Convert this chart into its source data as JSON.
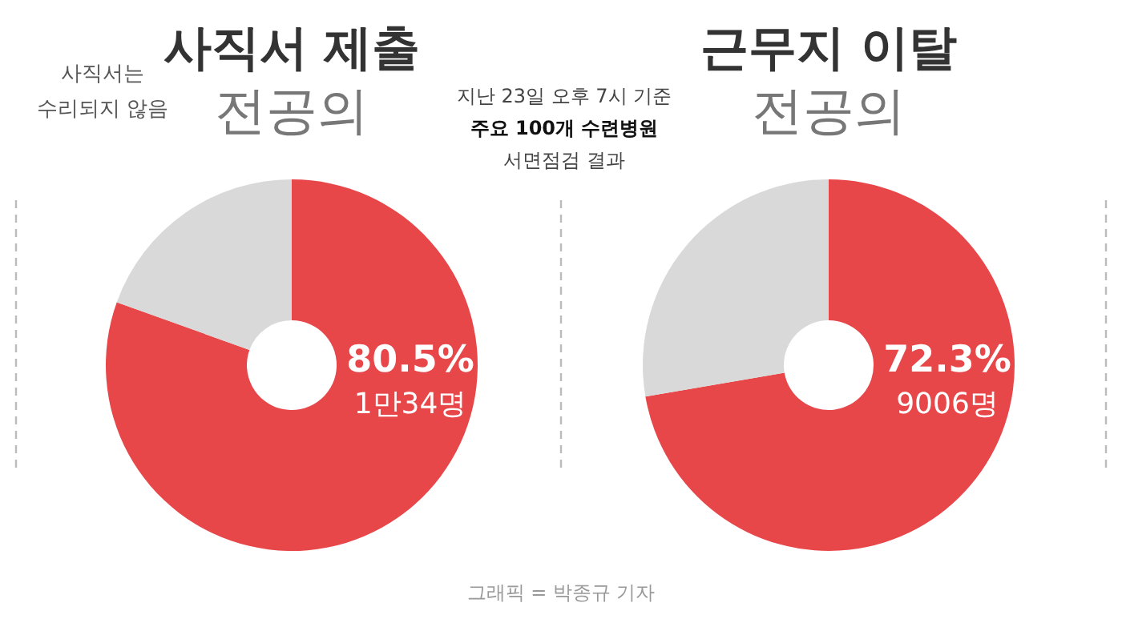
{
  "chart_data": [
    {
      "type": "donut",
      "title": "사직서 제출",
      "subtitle": "전공의",
      "categories": [
        null,
        null
      ],
      "values": [
        80.5,
        19.5
      ],
      "colors": [
        "#e8474a",
        "#d9d9d9"
      ],
      "value_labels": [
        "80.5%\n1만34명",
        null
      ],
      "annotations": [
        "사직서는\n수리되지 않음",
        "지난 23일 오후 7시 기준",
        "주요 100개 수련병원",
        "서면점검 결과"
      ]
    },
    {
      "type": "donut",
      "title": "근무지 이탈",
      "subtitle": "전공의",
      "categories": [
        null,
        null
      ],
      "values": [
        72.3,
        27.7
      ],
      "colors": [
        "#e8474a",
        "#d9d9d9"
      ],
      "value_labels": [
        "72.3%\n9006명",
        null
      ],
      "annotations": [
        "그래픽 = 박종규 기자"
      ]
    }
  ]
}
